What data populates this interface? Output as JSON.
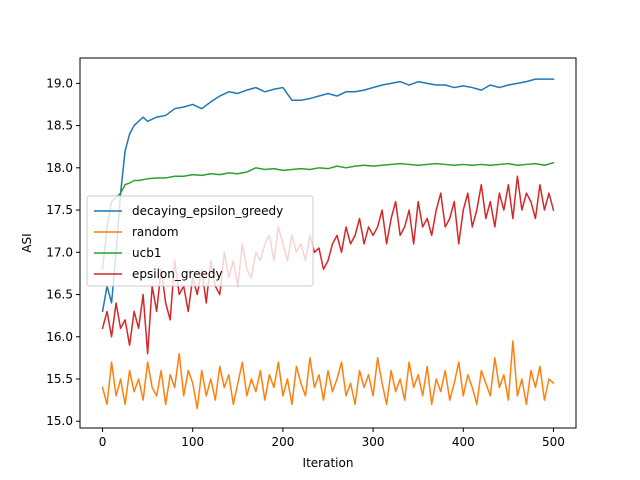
{
  "chart_data": {
    "type": "line",
    "title": "",
    "xlabel": "Iteration",
    "ylabel": "ASI",
    "xlim": [
      -25,
      525
    ],
    "ylim": [
      14.92,
      19.3
    ],
    "xticks": [
      0,
      100,
      200,
      300,
      400,
      500
    ],
    "xtick_labels": [
      "0",
      "100",
      "200",
      "300",
      "400",
      "500"
    ],
    "yticks": [
      15.0,
      15.5,
      16.0,
      16.5,
      17.0,
      17.5,
      18.0,
      18.5,
      19.0
    ],
    "ytick_labels": [
      "15.0",
      "15.5",
      "16.0",
      "16.5",
      "17.0",
      "17.5",
      "18.0",
      "18.5",
      "19.0"
    ],
    "grid": false,
    "legend_position": "center-left",
    "series": [
      {
        "name": "decaying_epsilon_greedy",
        "color": "#1f77b4",
        "x": [
          0,
          5,
          10,
          15,
          20,
          25,
          30,
          35,
          40,
          45,
          50,
          60,
          70,
          80,
          90,
          100,
          110,
          120,
          130,
          140,
          150,
          160,
          170,
          180,
          190,
          200,
          210,
          220,
          230,
          240,
          250,
          260,
          270,
          280,
          290,
          300,
          310,
          320,
          330,
          340,
          350,
          360,
          370,
          380,
          390,
          400,
          410,
          420,
          430,
          440,
          450,
          460,
          470,
          480,
          490,
          500
        ],
        "y": [
          16.3,
          16.6,
          16.4,
          17.0,
          17.7,
          18.2,
          18.4,
          18.5,
          18.55,
          18.6,
          18.55,
          18.6,
          18.62,
          18.7,
          18.72,
          18.75,
          18.7,
          18.78,
          18.85,
          18.9,
          18.88,
          18.92,
          18.95,
          18.9,
          18.93,
          18.95,
          18.8,
          18.8,
          18.82,
          18.85,
          18.88,
          18.85,
          18.9,
          18.9,
          18.92,
          18.95,
          18.98,
          19.0,
          19.02,
          18.98,
          19.02,
          19.0,
          18.98,
          18.98,
          18.95,
          18.97,
          18.95,
          18.92,
          18.98,
          18.95,
          18.98,
          19.0,
          19.02,
          19.05,
          19.05,
          19.05
        ]
      },
      {
        "name": "random",
        "color": "#ff7f0e",
        "x": [
          0,
          5,
          10,
          15,
          20,
          25,
          30,
          35,
          40,
          45,
          50,
          55,
          60,
          65,
          70,
          75,
          80,
          85,
          90,
          95,
          100,
          105,
          110,
          115,
          120,
          125,
          130,
          135,
          140,
          145,
          150,
          155,
          160,
          165,
          170,
          175,
          180,
          185,
          190,
          195,
          200,
          205,
          210,
          215,
          220,
          225,
          230,
          235,
          240,
          245,
          250,
          255,
          260,
          265,
          270,
          275,
          280,
          285,
          290,
          295,
          300,
          305,
          310,
          315,
          320,
          325,
          330,
          335,
          340,
          345,
          350,
          355,
          360,
          365,
          370,
          375,
          380,
          385,
          390,
          395,
          400,
          405,
          410,
          415,
          420,
          425,
          430,
          435,
          440,
          445,
          450,
          455,
          460,
          465,
          470,
          475,
          480,
          485,
          490,
          495,
          500
        ],
        "y": [
          15.4,
          15.2,
          15.7,
          15.3,
          15.5,
          15.2,
          15.6,
          15.35,
          15.5,
          15.25,
          15.7,
          15.4,
          15.3,
          15.6,
          15.2,
          15.55,
          15.4,
          15.8,
          15.3,
          15.6,
          15.45,
          15.15,
          15.6,
          15.3,
          15.5,
          15.25,
          15.65,
          15.4,
          15.55,
          15.2,
          15.45,
          15.7,
          15.3,
          15.5,
          15.35,
          15.6,
          15.25,
          15.55,
          15.4,
          15.7,
          15.3,
          15.5,
          15.2,
          15.65,
          15.45,
          15.3,
          15.75,
          15.4,
          15.55,
          15.25,
          15.6,
          15.35,
          15.5,
          15.7,
          15.3,
          15.45,
          15.2,
          15.6,
          15.4,
          15.55,
          15.3,
          15.75,
          15.45,
          15.2,
          15.6,
          15.35,
          15.5,
          15.25,
          15.7,
          15.4,
          15.55,
          15.3,
          15.65,
          15.2,
          15.5,
          15.35,
          15.6,
          15.25,
          15.45,
          15.7,
          15.3,
          15.55,
          15.4,
          15.2,
          15.6,
          15.45,
          15.3,
          15.75,
          15.4,
          15.55,
          15.25,
          15.95,
          15.3,
          15.5,
          15.2,
          15.6,
          15.4,
          15.65,
          15.25,
          15.5,
          15.45
        ]
      },
      {
        "name": "ucb1",
        "color": "#2ca02c",
        "x": [
          0,
          5,
          10,
          15,
          20,
          25,
          30,
          35,
          40,
          50,
          60,
          70,
          80,
          90,
          100,
          110,
          120,
          130,
          140,
          150,
          160,
          170,
          180,
          190,
          200,
          210,
          220,
          230,
          240,
          250,
          260,
          270,
          280,
          290,
          300,
          310,
          320,
          330,
          340,
          350,
          360,
          370,
          380,
          390,
          400,
          410,
          420,
          430,
          440,
          450,
          460,
          470,
          480,
          490,
          500
        ],
        "y": [
          16.8,
          17.3,
          17.6,
          17.65,
          17.7,
          17.8,
          17.82,
          17.85,
          17.85,
          17.87,
          17.88,
          17.88,
          17.9,
          17.9,
          17.92,
          17.91,
          17.93,
          17.92,
          17.94,
          17.93,
          17.95,
          18.0,
          17.98,
          17.99,
          17.97,
          17.98,
          17.99,
          17.98,
          18.0,
          17.99,
          18.02,
          18.0,
          18.02,
          18.03,
          18.02,
          18.03,
          18.04,
          18.05,
          18.04,
          18.03,
          18.04,
          18.05,
          18.04,
          18.03,
          18.04,
          18.03,
          18.04,
          18.03,
          18.04,
          18.05,
          18.03,
          18.04,
          18.05,
          18.03,
          18.06
        ]
      },
      {
        "name": "epsilon_greedy",
        "color": "#d62728",
        "x": [
          0,
          5,
          10,
          15,
          20,
          25,
          30,
          35,
          40,
          45,
          50,
          55,
          60,
          65,
          70,
          75,
          80,
          85,
          90,
          95,
          100,
          105,
          110,
          115,
          120,
          125,
          130,
          135,
          140,
          145,
          150,
          155,
          160,
          165,
          170,
          175,
          180,
          185,
          190,
          195,
          200,
          205,
          210,
          215,
          220,
          225,
          230,
          235,
          240,
          245,
          250,
          255,
          260,
          265,
          270,
          275,
          280,
          285,
          290,
          295,
          300,
          305,
          310,
          315,
          320,
          325,
          330,
          335,
          340,
          345,
          350,
          355,
          360,
          365,
          370,
          375,
          380,
          385,
          390,
          395,
          400,
          405,
          410,
          415,
          420,
          425,
          430,
          435,
          440,
          445,
          450,
          455,
          460,
          465,
          470,
          475,
          480,
          485,
          490,
          495,
          500
        ],
        "y": [
          16.1,
          16.3,
          16.0,
          16.4,
          16.1,
          16.2,
          15.9,
          16.3,
          16.1,
          16.5,
          15.8,
          16.6,
          16.3,
          16.8,
          16.4,
          16.2,
          16.9,
          16.5,
          16.6,
          16.3,
          16.7,
          16.5,
          16.8,
          16.4,
          16.9,
          16.6,
          16.5,
          17.0,
          16.7,
          16.9,
          16.6,
          17.1,
          16.8,
          16.7,
          17.0,
          16.9,
          17.1,
          17.2,
          16.9,
          17.3,
          17.1,
          16.9,
          17.2,
          17.0,
          17.1,
          16.9,
          17.2,
          17.0,
          17.05,
          16.8,
          16.9,
          17.1,
          17.2,
          17.0,
          17.3,
          17.1,
          17.2,
          17.4,
          17.1,
          17.3,
          17.2,
          17.3,
          17.5,
          17.1,
          17.4,
          17.6,
          17.2,
          17.3,
          17.5,
          17.1,
          17.6,
          17.3,
          17.4,
          17.2,
          17.5,
          17.7,
          17.3,
          17.4,
          17.6,
          17.1,
          17.5,
          17.7,
          17.3,
          17.5,
          17.8,
          17.4,
          17.6,
          17.3,
          17.7,
          17.5,
          17.8,
          17.4,
          17.9,
          17.5,
          17.7,
          17.6,
          17.4,
          17.8,
          17.5,
          17.7,
          17.5
        ]
      }
    ]
  }
}
